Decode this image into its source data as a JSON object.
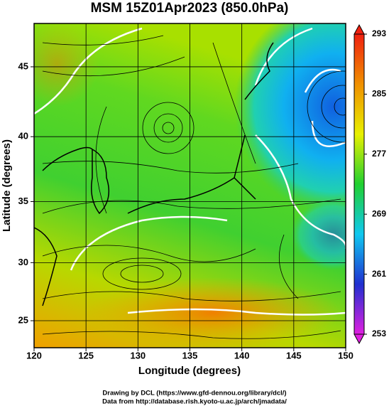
{
  "chart_data": {
    "type": "field-map",
    "title": "MSM 15Z01Apr2023 (850.0hPa)",
    "xlabel": "Longitude (degrees)",
    "ylabel": "Latitude  (degrees)",
    "xlim": [
      120,
      150
    ],
    "ylim": [
      22.6,
      47.9
    ],
    "xticks": [
      120,
      125,
      130,
      135,
      140,
      145,
      150
    ],
    "yticks": [
      25,
      30,
      35,
      40,
      45
    ],
    "grid": true,
    "colorbar": {
      "lim": [
        253,
        293
      ],
      "ticks": [
        253,
        261,
        269,
        277,
        285,
        293
      ],
      "colors": [
        "#e020e0",
        "#2030d0",
        "#10c8f0",
        "#20d030",
        "#e8f000",
        "#f09000",
        "#f02010"
      ]
    }
  },
  "credits": [
    "Drawing by DCL (https://www.gfd-dennou.org/library/dcl/)",
    "Data from http://database.rish.kyoto-u.ac.jp/arch/jmadata/"
  ]
}
